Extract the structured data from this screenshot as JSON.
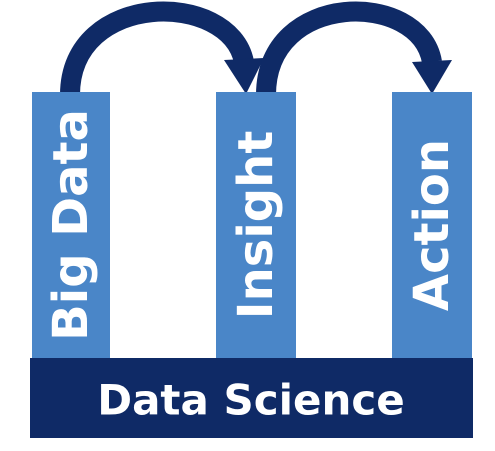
{
  "pillars": [
    {
      "label": "Big Data"
    },
    {
      "label": "Insight"
    },
    {
      "label": "Action"
    }
  ],
  "base": {
    "label": "Data Science"
  },
  "colors": {
    "pillar": "#4a86c8",
    "base": "#0f2a66",
    "arrow": "#0f2a66",
    "text": "#ffffff"
  },
  "arrows": [
    {
      "from": "Big Data",
      "to": "Insight",
      "icon": "curved-arrow-icon"
    },
    {
      "from": "Insight",
      "to": "Action",
      "icon": "curved-arrow-icon"
    }
  ]
}
